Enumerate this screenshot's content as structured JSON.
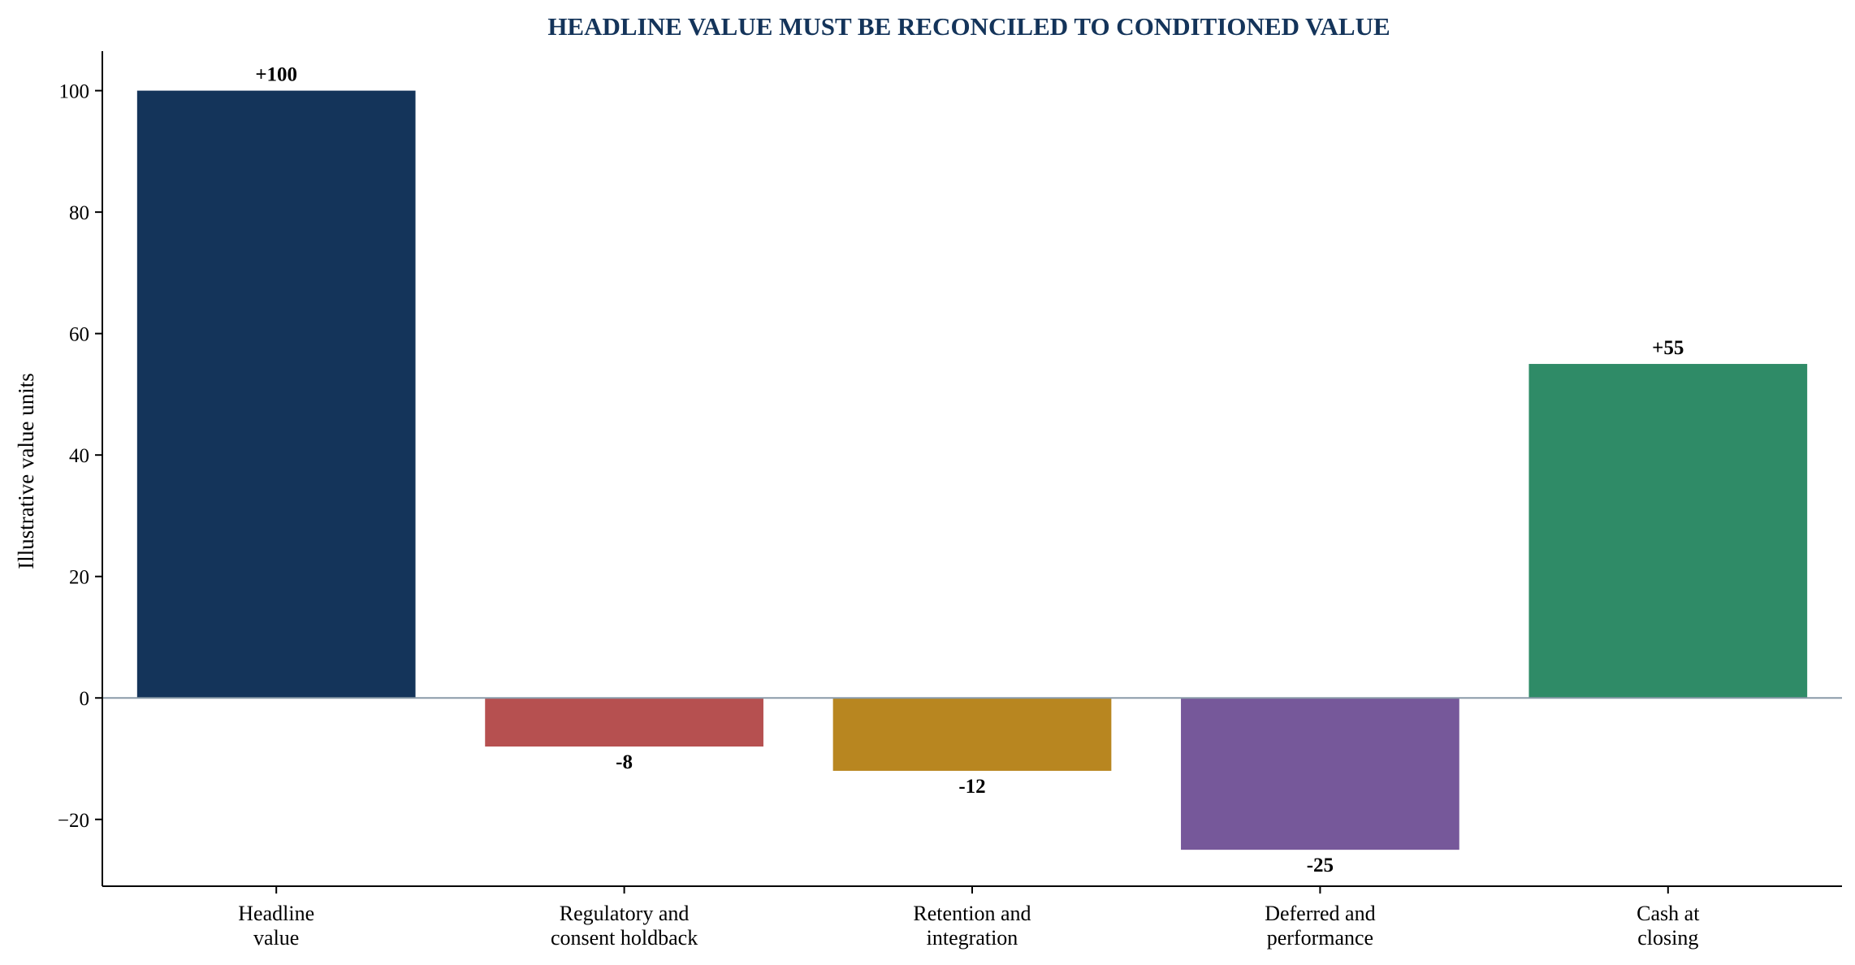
{
  "chart_data": {
    "type": "bar",
    "title": "HEADLINE VALUE MUST BE RECONCILED TO CONDITIONED VALUE",
    "ylabel": "Illustrative value units",
    "xlabel": "",
    "categories": [
      [
        "Headline",
        "value"
      ],
      [
        "Regulatory and",
        "consent holdback"
      ],
      [
        "Retention and",
        "integration"
      ],
      [
        "Deferred and",
        "performance"
      ],
      [
        "Cash at",
        "closing"
      ]
    ],
    "values": [
      100,
      -8,
      -12,
      -25,
      55
    ],
    "data_labels": [
      "+100",
      "-8",
      "-12",
      "-25",
      "+55"
    ],
    "colors": [
      "#14345a",
      "#b65050",
      "#b88620",
      "#76589a",
      "#2f8b67"
    ],
    "ylim": [
      -31,
      106.5
    ],
    "yticks": [
      -20,
      0,
      20,
      40,
      60,
      80,
      100
    ],
    "ytick_labels": [
      "−20",
      "0",
      "20",
      "40",
      "60",
      "80",
      "100"
    ],
    "grid": false,
    "legend": "none",
    "zero_line_color": "#8a9aa8"
  }
}
